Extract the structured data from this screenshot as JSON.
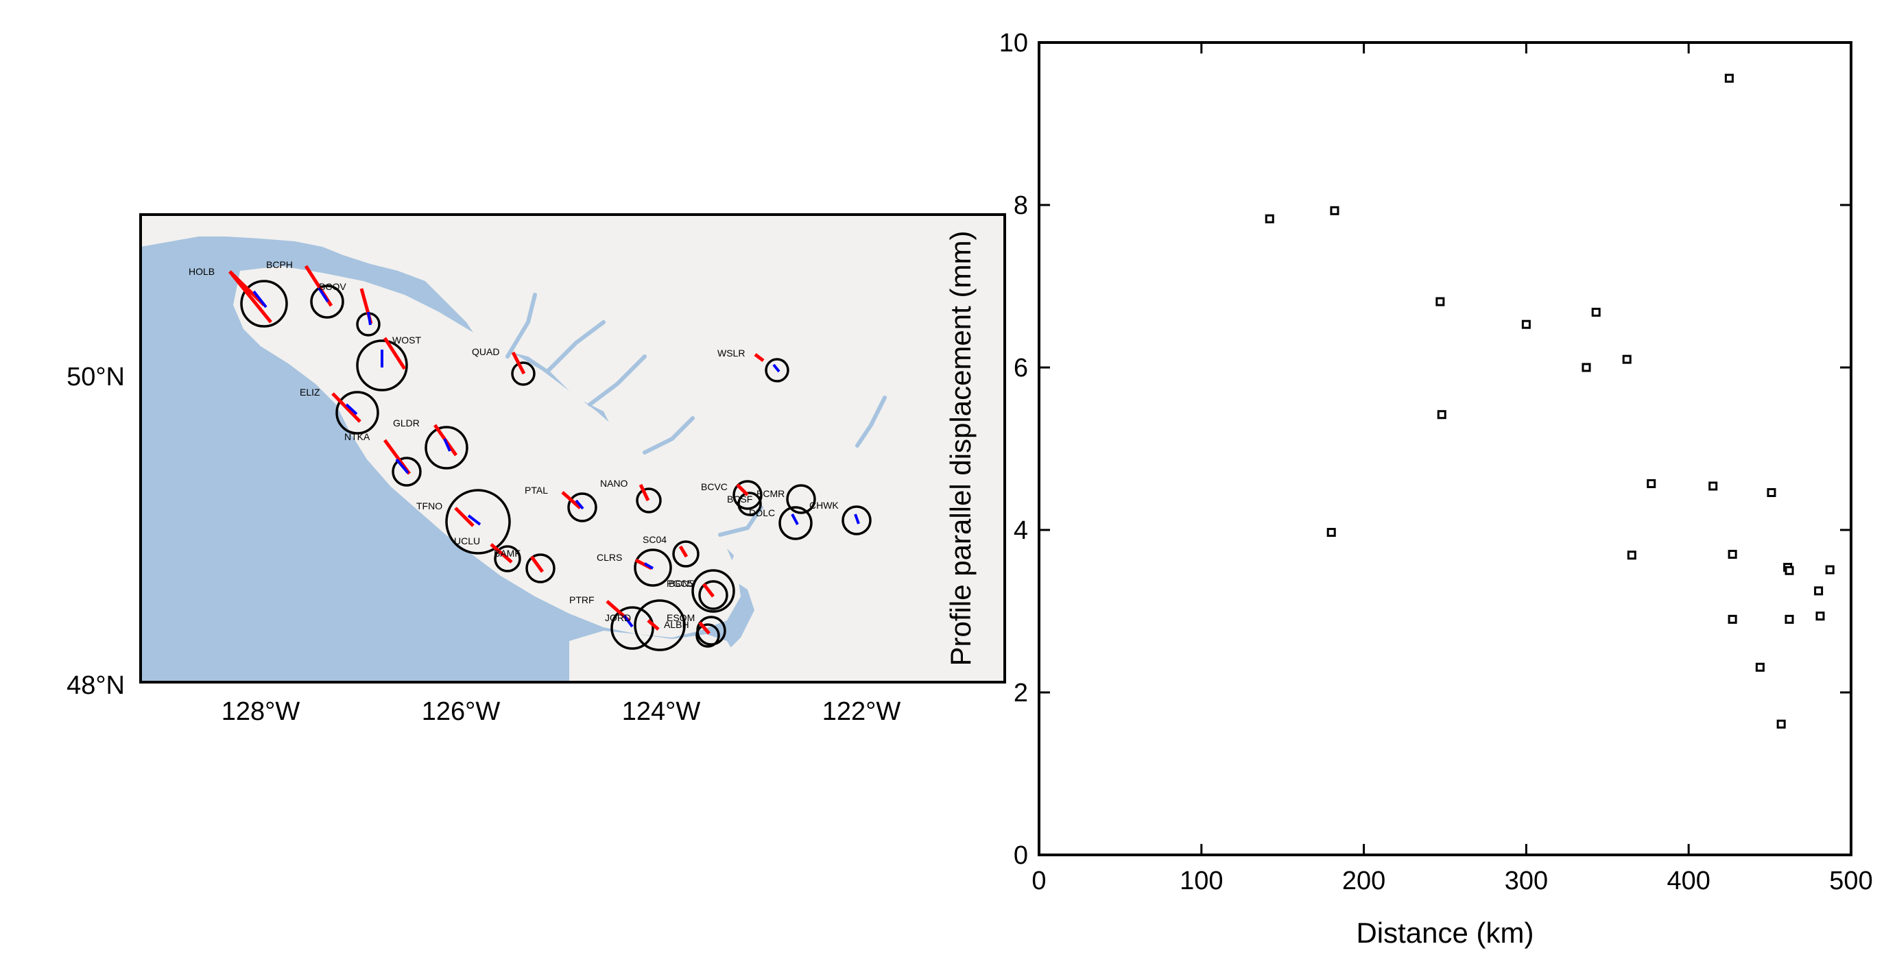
{
  "map": {
    "lon_ticks": [
      "128°W",
      "126°W",
      "124°W",
      "122°W"
    ],
    "lat_ticks": [
      "50°N",
      "48°N"
    ],
    "colors": {
      "sea": "#a7c3df",
      "land": "#f2f1ef",
      "observed": "#ff0000",
      "modeled": "#0000ff",
      "ellipse": "#000000"
    },
    "stations": [
      {
        "name": "HOLB"
      },
      {
        "name": "BCPH"
      },
      {
        "name": "BCOV"
      },
      {
        "name": "WOST"
      },
      {
        "name": "QUAD"
      },
      {
        "name": "WSLR"
      },
      {
        "name": "ELIZ"
      },
      {
        "name": "GLDR"
      },
      {
        "name": "NTKA"
      },
      {
        "name": "PTAL"
      },
      {
        "name": "NANO"
      },
      {
        "name": "BCVC"
      },
      {
        "name": "BCSF"
      },
      {
        "name": "BCMR"
      },
      {
        "name": "DDLC"
      },
      {
        "name": "CHWK"
      },
      {
        "name": "TFNO"
      },
      {
        "name": "UCLU"
      },
      {
        "name": "SC04"
      },
      {
        "name": "BAMF"
      },
      {
        "name": "CLRS"
      },
      {
        "name": "PGC5"
      },
      {
        "name": "BCNS"
      },
      {
        "name": "PTRF"
      },
      {
        "name": "JORD"
      },
      {
        "name": "ESQM"
      },
      {
        "name": "ALBH"
      }
    ]
  },
  "chart_data": {
    "type": "scatter",
    "title": "",
    "xlabel": "Distance (km)",
    "ylabel": "Profile parallel displacement (mm)",
    "xlim": [
      0,
      500
    ],
    "ylim": [
      0,
      10
    ],
    "xticks": [
      0,
      100,
      200,
      300,
      400,
      500
    ],
    "yticks": [
      0,
      2,
      4,
      6,
      8,
      10
    ],
    "x_tick_labels": [
      "0",
      "100",
      "200",
      "300",
      "400",
      "500"
    ],
    "y_tick_labels": [
      "0",
      "2",
      "4",
      "6",
      "8",
      "10"
    ],
    "points": [
      {
        "x": 142,
        "y": 7.83
      },
      {
        "x": 182,
        "y": 7.93
      },
      {
        "x": 180,
        "y": 3.97
      },
      {
        "x": 247,
        "y": 6.81
      },
      {
        "x": 248,
        "y": 5.42
      },
      {
        "x": 300,
        "y": 6.53
      },
      {
        "x": 337,
        "y": 6.0
      },
      {
        "x": 343,
        "y": 6.68
      },
      {
        "x": 362,
        "y": 6.1
      },
      {
        "x": 365,
        "y": 3.69
      },
      {
        "x": 377,
        "y": 4.57
      },
      {
        "x": 415,
        "y": 4.54
      },
      {
        "x": 425,
        "y": 9.56
      },
      {
        "x": 427,
        "y": 3.7
      },
      {
        "x": 427,
        "y": 2.9
      },
      {
        "x": 444,
        "y": 2.31
      },
      {
        "x": 451,
        "y": 4.46
      },
      {
        "x": 457,
        "y": 1.61
      },
      {
        "x": 461,
        "y": 3.54
      },
      {
        "x": 462,
        "y": 3.5
      },
      {
        "x": 462,
        "y": 2.9
      },
      {
        "x": 480,
        "y": 3.25
      },
      {
        "x": 481,
        "y": 2.94
      },
      {
        "x": 487,
        "y": 3.51
      }
    ]
  }
}
